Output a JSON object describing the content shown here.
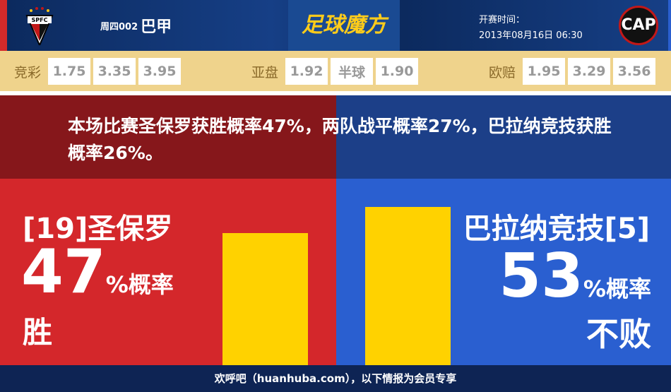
{
  "header": {
    "home_logo_text": "SPFC",
    "match_no": "周四002",
    "league": "巴甲",
    "brand": "足球魔方",
    "time_label": "开赛时间：",
    "time_value": "2013年08月16日 06:30",
    "away_logo_text": "CAP"
  },
  "odds": [
    {
      "label": "竞彩",
      "values": [
        "1.75",
        "3.35",
        "3.95"
      ]
    },
    {
      "label": "亚盘",
      "values": [
        "1.92",
        "半球",
        "1.90"
      ]
    },
    {
      "label": "欧赔",
      "values": [
        "1.95",
        "3.29",
        "3.56"
      ]
    }
  ],
  "summary": "本场比赛圣保罗获胜概率47%，两队战平概率27%，巴拉纳竞技获胜概率26%。",
  "home": {
    "team": "[19]圣保罗",
    "pct": "47",
    "pct_suffix": "%概率",
    "result": "胜",
    "bar_percent": 47
  },
  "away": {
    "team": "巴拉纳竞技[5]",
    "pct": "53",
    "pct_suffix": "%概率",
    "result": "不败",
    "bar_percent": 53
  },
  "colors": {
    "home": "#d4272b",
    "away": "#2a5fd0",
    "bar": "#ffd200"
  },
  "footer": "欢呼吧（huanhuba.com），以下情报为会员专享"
}
